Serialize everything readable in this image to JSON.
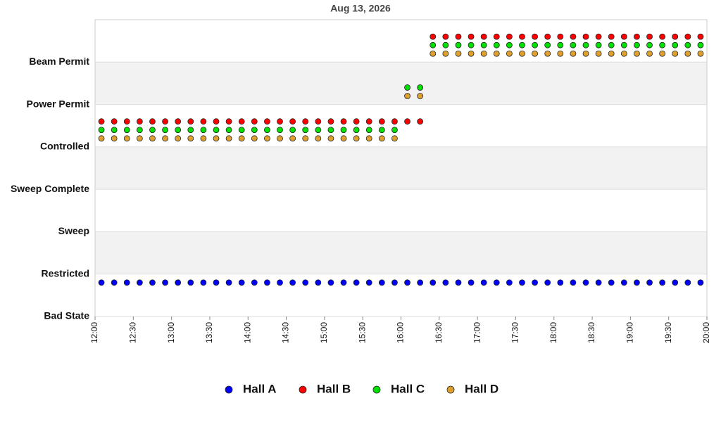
{
  "chart_data": {
    "type": "scatter",
    "title": "Aug 13, 2026",
    "x": [
      "12:05",
      "12:15",
      "12:25",
      "12:35",
      "12:45",
      "12:55",
      "13:05",
      "13:15",
      "13:25",
      "13:35",
      "13:45",
      "13:55",
      "14:05",
      "14:15",
      "14:25",
      "14:35",
      "14:45",
      "14:55",
      "15:05",
      "15:15",
      "15:25",
      "15:35",
      "15:45",
      "15:55",
      "16:05",
      "16:15",
      "16:25",
      "16:35",
      "16:45",
      "16:55",
      "17:05",
      "17:15",
      "17:25",
      "17:35",
      "17:45",
      "17:55",
      "18:05",
      "18:15",
      "18:25",
      "18:35",
      "18:45",
      "18:55",
      "19:05",
      "19:15",
      "19:25",
      "19:35",
      "19:45",
      "19:55"
    ],
    "xlim": [
      "12:00",
      "20:00"
    ],
    "xticks": [
      "12:00",
      "12:30",
      "13:00",
      "13:30",
      "14:00",
      "14:30",
      "15:00",
      "15:30",
      "16:00",
      "16:30",
      "17:00",
      "17:30",
      "18:00",
      "18:30",
      "19:00",
      "19:30",
      "20:00"
    ],
    "ylim": [
      0,
      7
    ],
    "yticks": [
      {
        "value": 0,
        "label": "Bad State"
      },
      {
        "value": 1,
        "label": "Restricted"
      },
      {
        "value": 2,
        "label": "Sweep"
      },
      {
        "value": 3,
        "label": "Sweep Complete"
      },
      {
        "value": 4,
        "label": "Controlled"
      },
      {
        "value": 5,
        "label": "Power Permit"
      },
      {
        "value": 6,
        "label": "Beam Permit"
      }
    ],
    "series": [
      {
        "name": "Hall A",
        "color": "#0000ff",
        "values": [
          0,
          0,
          0,
          0,
          0,
          0,
          0,
          0,
          0,
          0,
          0,
          0,
          0,
          0,
          0,
          0,
          0,
          0,
          0,
          0,
          0,
          0,
          0,
          0,
          0,
          0,
          0,
          0,
          0,
          0,
          0,
          0,
          0,
          0,
          0,
          0,
          0,
          0,
          0,
          0,
          0,
          0,
          0,
          0,
          0,
          0,
          0,
          0
        ]
      },
      {
        "name": "Hall B",
        "color": "#ff0000",
        "values": [
          4,
          4,
          4,
          4,
          4,
          4,
          4,
          4,
          4,
          4,
          4,
          4,
          4,
          4,
          4,
          4,
          4,
          4,
          4,
          4,
          4,
          4,
          4,
          4,
          4,
          4,
          6,
          6,
          6,
          6,
          6,
          6,
          6,
          6,
          6,
          6,
          6,
          6,
          6,
          6,
          6,
          6,
          6,
          6,
          6,
          6,
          6,
          6
        ]
      },
      {
        "name": "Hall C",
        "color": "#00e000",
        "values": [
          4,
          4,
          4,
          4,
          4,
          4,
          4,
          4,
          4,
          4,
          4,
          4,
          4,
          4,
          4,
          4,
          4,
          4,
          4,
          4,
          4,
          4,
          4,
          4,
          5,
          5,
          6,
          6,
          6,
          6,
          6,
          6,
          6,
          6,
          6,
          6,
          6,
          6,
          6,
          6,
          6,
          6,
          6,
          6,
          6,
          6,
          6,
          6
        ]
      },
      {
        "name": "Hall D",
        "color": "#e0a030",
        "values": [
          4,
          4,
          4,
          4,
          4,
          4,
          4,
          4,
          4,
          4,
          4,
          4,
          4,
          4,
          4,
          4,
          4,
          4,
          4,
          4,
          4,
          4,
          4,
          4,
          5,
          5,
          6,
          6,
          6,
          6,
          6,
          6,
          6,
          6,
          6,
          6,
          6,
          6,
          6,
          6,
          6,
          6,
          6,
          6,
          6,
          6,
          6,
          6
        ]
      }
    ],
    "grid": true
  }
}
